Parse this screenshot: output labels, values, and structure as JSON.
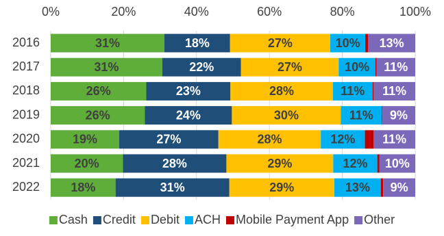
{
  "chart_data": {
    "type": "stacked-bar-horizontal",
    "categories": [
      "2016",
      "2017",
      "2018",
      "2019",
      "2020",
      "2021",
      "2022"
    ],
    "series": [
      {
        "name": "Cash",
        "color": "#5fae3a",
        "label_color": "#404040",
        "values": [
          31.2,
          30.6,
          26.2,
          25.8,
          18.8,
          19.8,
          17.8
        ],
        "value_labels": [
          "31%",
          "31%",
          "26%",
          "26%",
          "19%",
          "20%",
          "18%"
        ]
      },
      {
        "name": "Credit",
        "color": "#1f4e79",
        "label_color": "#ffffff",
        "values": [
          18.0,
          21.6,
          23.1,
          23.9,
          27.2,
          28.4,
          31.2
        ],
        "value_labels": [
          "18%",
          "22%",
          "23%",
          "24%",
          "27%",
          "28%",
          "31%"
        ]
      },
      {
        "name": "Debit",
        "color": "#ffc000",
        "label_color": "#404040",
        "values": [
          27.5,
          26.8,
          28.1,
          29.9,
          28.1,
          29.3,
          28.8
        ],
        "value_labels": [
          "27%",
          "27%",
          "28%",
          "30%",
          "28%",
          "29%",
          "29%"
        ]
      },
      {
        "name": "ACH",
        "color": "#00b0f0",
        "label_color": "#404040",
        "values": [
          9.6,
          10.1,
          10.9,
          11.2,
          12.1,
          12.1,
          12.8
        ],
        "value_labels": [
          "10%",
          "10%",
          "11%",
          "11%",
          "12%",
          "12%",
          "13%"
        ]
      },
      {
        "name": "Mobile Payment App",
        "color": "#c00000",
        "values": [
          0.8,
          0.3,
          0.3,
          0.2,
          2.4,
          0.6,
          0.6
        ]
      },
      {
        "name": "Other",
        "color": "#7b68b8",
        "label_color": "#ffffff",
        "values": [
          12.9,
          10.6,
          11.4,
          9.0,
          11.4,
          9.8,
          8.8
        ],
        "value_labels": [
          "13%",
          "11%",
          "11%",
          "9%",
          "11%",
          "10%",
          "9%"
        ]
      }
    ],
    "xlim": [
      0,
      100
    ],
    "xticks": [
      {
        "value": 0,
        "label": "0%"
      },
      {
        "value": 20,
        "label": "20%"
      },
      {
        "value": 40,
        "label": "40%"
      },
      {
        "value": 60,
        "label": "60%"
      },
      {
        "value": 80,
        "label": "80%"
      },
      {
        "value": 100,
        "label": "100%"
      }
    ],
    "grid": true,
    "legend": "bottom"
  }
}
